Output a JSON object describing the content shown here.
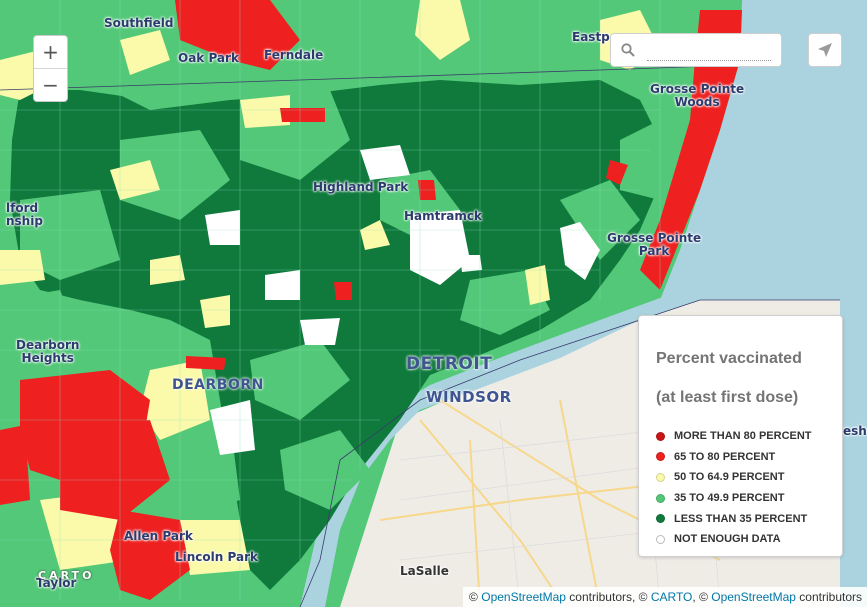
{
  "map": {
    "labels": {
      "southfield": "Southfield",
      "oak_park": "Oak Park",
      "ferndale": "Ferndale",
      "eastpointe": "Eastp",
      "grosse_pointe_woods_1": "Grosse Pointe",
      "grosse_pointe_woods_2": "Woods",
      "highland_park": "Highland Park",
      "hamtramck": "Hamtramck",
      "grosse_pointe_park_1": "Grosse Pointe",
      "grosse_pointe_park_2": "Park",
      "redford_1": "lford",
      "redford_2": "nship",
      "dearborn_heights_1": "Dearborn",
      "dearborn_heights_2": "Heights",
      "dearborn": "DEARBORN",
      "detroit": "DETROIT",
      "windsor": "WINDSOR",
      "allen_park": "Allen Park",
      "lincoln_park": "Lincoln Park",
      "lasalle": "LaSalle",
      "taylor": "Taylor",
      "lakeshore": "esho"
    },
    "zoom_in_label": "+",
    "zoom_out_label": "−",
    "search_placeholder": ""
  },
  "legend": {
    "title_line1": "Percent vaccinated",
    "title_line2": "(at least first dose)",
    "items": [
      {
        "label": "MORE THAN 80 PERCENT",
        "color": "#c91515"
      },
      {
        "label": "65 TO 80 PERCENT",
        "color": "#ee2020"
      },
      {
        "label": "50 TO 64.9 PERCENT",
        "color": "#fafaaa"
      },
      {
        "label": "35 TO 49.9 PERCENT",
        "color": "#52c878"
      },
      {
        "label": "LESS THAN 35 PERCENT",
        "color": "#0f7a3c"
      },
      {
        "label": "NOT ENOUGH DATA",
        "color": "#ffffff"
      }
    ]
  },
  "branding": {
    "carto": "CARTO"
  },
  "attribution": {
    "prefix": "© ",
    "osm1": "OpenStreetMap",
    "mid1": " contributors, © ",
    "carto": "CARTO",
    "mid2": ", © ",
    "osm2": "OpenStreetMap",
    "suffix": " contributors"
  },
  "colors": {
    "water": "#aad3df",
    "land_ontario": "#efece6",
    "dark_green": "#0f7a3c",
    "light_green": "#52c878",
    "yellow": "#fafaaa",
    "red": "#ee2020"
  }
}
